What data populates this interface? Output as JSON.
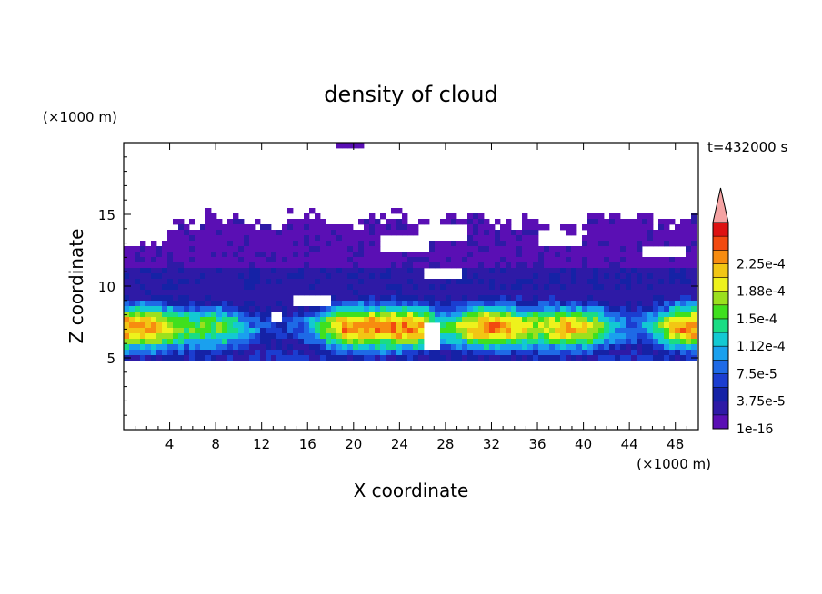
{
  "chart_data": {
    "type": "heatmap",
    "title": "density of cloud",
    "time_label": "t=432000 s",
    "xlabel": "X coordinate",
    "ylabel": "Z coordinate",
    "x_unit": "(×1000 m)",
    "y_unit": "(×1000 m)",
    "xlim": [
      0,
      50
    ],
    "ylim": [
      0,
      20
    ],
    "x_ticks": [
      4,
      8,
      12,
      16,
      20,
      24,
      28,
      32,
      36,
      40,
      44,
      48
    ],
    "x_tick_labels": [
      "4",
      "8",
      "12",
      "16",
      "20",
      "24",
      "28",
      "32",
      "36",
      "40",
      "44",
      "48"
    ],
    "y_ticks": [
      5,
      10,
      15
    ],
    "y_tick_labels": [
      "5",
      "10",
      "15"
    ],
    "colorbar": {
      "levels": [
        1e-16,
        1.875e-05,
        3.75e-05,
        5.625e-05,
        7.5e-05,
        9.375e-05,
        0.0001125,
        0.00013125,
        0.00015,
        0.00016875,
        0.0001875,
        0.00020625,
        0.000225,
        0.00024375
      ],
      "tick_labels": [
        "1e-16",
        "3.75e-5",
        "7.5e-5",
        "1.12e-4",
        "1.5e-4",
        "1.88e-4",
        "2.25e-4"
      ],
      "colors": [
        "#5a0fb4",
        "#2e1aa6",
        "#1522a6",
        "#1b3dd0",
        "#1e6ae6",
        "#1aa0ee",
        "#13c9d2",
        "#1adc84",
        "#3fe01e",
        "#9be01e",
        "#eef21c",
        "#f2c614",
        "#f78c10",
        "#f24a10",
        "#dd1212"
      ],
      "overflow_color": "#f5a3a3"
    },
    "cloud_layer": {
      "base_z": 5,
      "cloud_top_z": 15,
      "dense_core_z": [
        6,
        9
      ],
      "dense_core_x_centers": [
        2,
        21,
        32,
        39,
        49
      ],
      "peak_level": 0.000188
    }
  }
}
